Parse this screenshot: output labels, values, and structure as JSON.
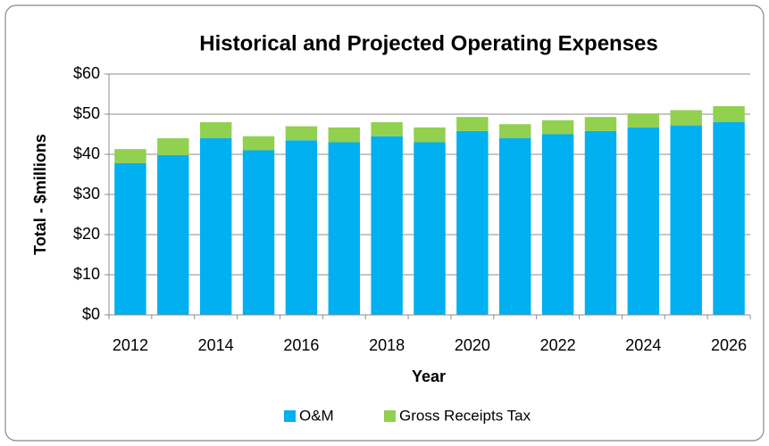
{
  "chart_data": {
    "type": "stacked_bar",
    "title": "Historical and Projected Operating Expenses",
    "x_label": "Year",
    "y_label": "Total - $millions",
    "categories": [
      2012,
      null,
      2014,
      null,
      2016,
      null,
      2018,
      null,
      2020,
      null,
      2022,
      null,
      2024,
      null,
      2026
    ],
    "series": [
      {
        "name": "O&M",
        "color": "#00b0f0",
        "values": [
          37.8,
          39.8,
          44,
          41,
          43.5,
          43,
          44.5,
          43,
          45.8,
          44,
          45,
          45.8,
          46.7,
          47.2,
          48
        ]
      },
      {
        "name": "Gross Receipts Tax",
        "color": "#92d050",
        "values": [
          3.5,
          4.2,
          4,
          3.5,
          3.5,
          3.7,
          3.5,
          3.7,
          3.5,
          3.5,
          3.5,
          3.5,
          3.5,
          3.8,
          4
        ]
      }
    ],
    "ylim": [
      0,
      60
    ],
    "yticks": [
      {
        "value": 0,
        "label": "$0"
      },
      {
        "value": 10,
        "label": "$10"
      },
      {
        "value": 20,
        "label": "$20"
      },
      {
        "value": 30,
        "label": "$30"
      },
      {
        "value": 40,
        "label": "$40"
      },
      {
        "value": 50,
        "label": "$50"
      },
      {
        "value": 60,
        "label": "$60"
      }
    ],
    "grid": true,
    "legend": "bottom"
  }
}
